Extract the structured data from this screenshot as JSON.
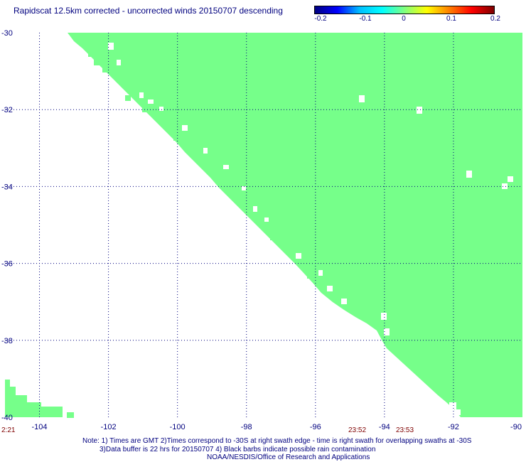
{
  "title": "Rapidscat 12.5km corrected - uncorrected winds 20150707 descending",
  "colorbar": {
    "labels": [
      "-0.2",
      "-0.1",
      "0",
      "0.1",
      "0.2"
    ],
    "colors": [
      "#00007f",
      "#0000ff",
      "#00bfff",
      "#00ffff",
      "#80ff80",
      "#ffff00",
      "#ff8000",
      "#ff0000",
      "#7f0000"
    ]
  },
  "map": {
    "lon_labels": [
      "-104",
      "-102",
      "-100",
      "-98",
      "-96",
      "-94",
      "-92",
      "-90"
    ],
    "lat_labels": [
      "-30",
      "-32",
      "-34",
      "-36",
      "-38",
      "-40"
    ],
    "lon_range": [
      -105,
      -90
    ],
    "lat_range": [
      -30,
      -40
    ],
    "swath_color": "#76ff8a",
    "grid_color": "#00007f",
    "grid": true
  },
  "time_labels": [
    "2:21",
    "23:52",
    "23:53"
  ],
  "notes": {
    "line1": "Note: 1) Times are GMT 2)Times correspond to -30S at right swath edge - time is right swath for overlapping swaths at -30S",
    "line2": "3)Data buffer is 22 hrs for 20150707 4) Black barbs indicate possible rain contamination",
    "line3": "NOAA/NESDIS/Office of Research and Applications"
  }
}
